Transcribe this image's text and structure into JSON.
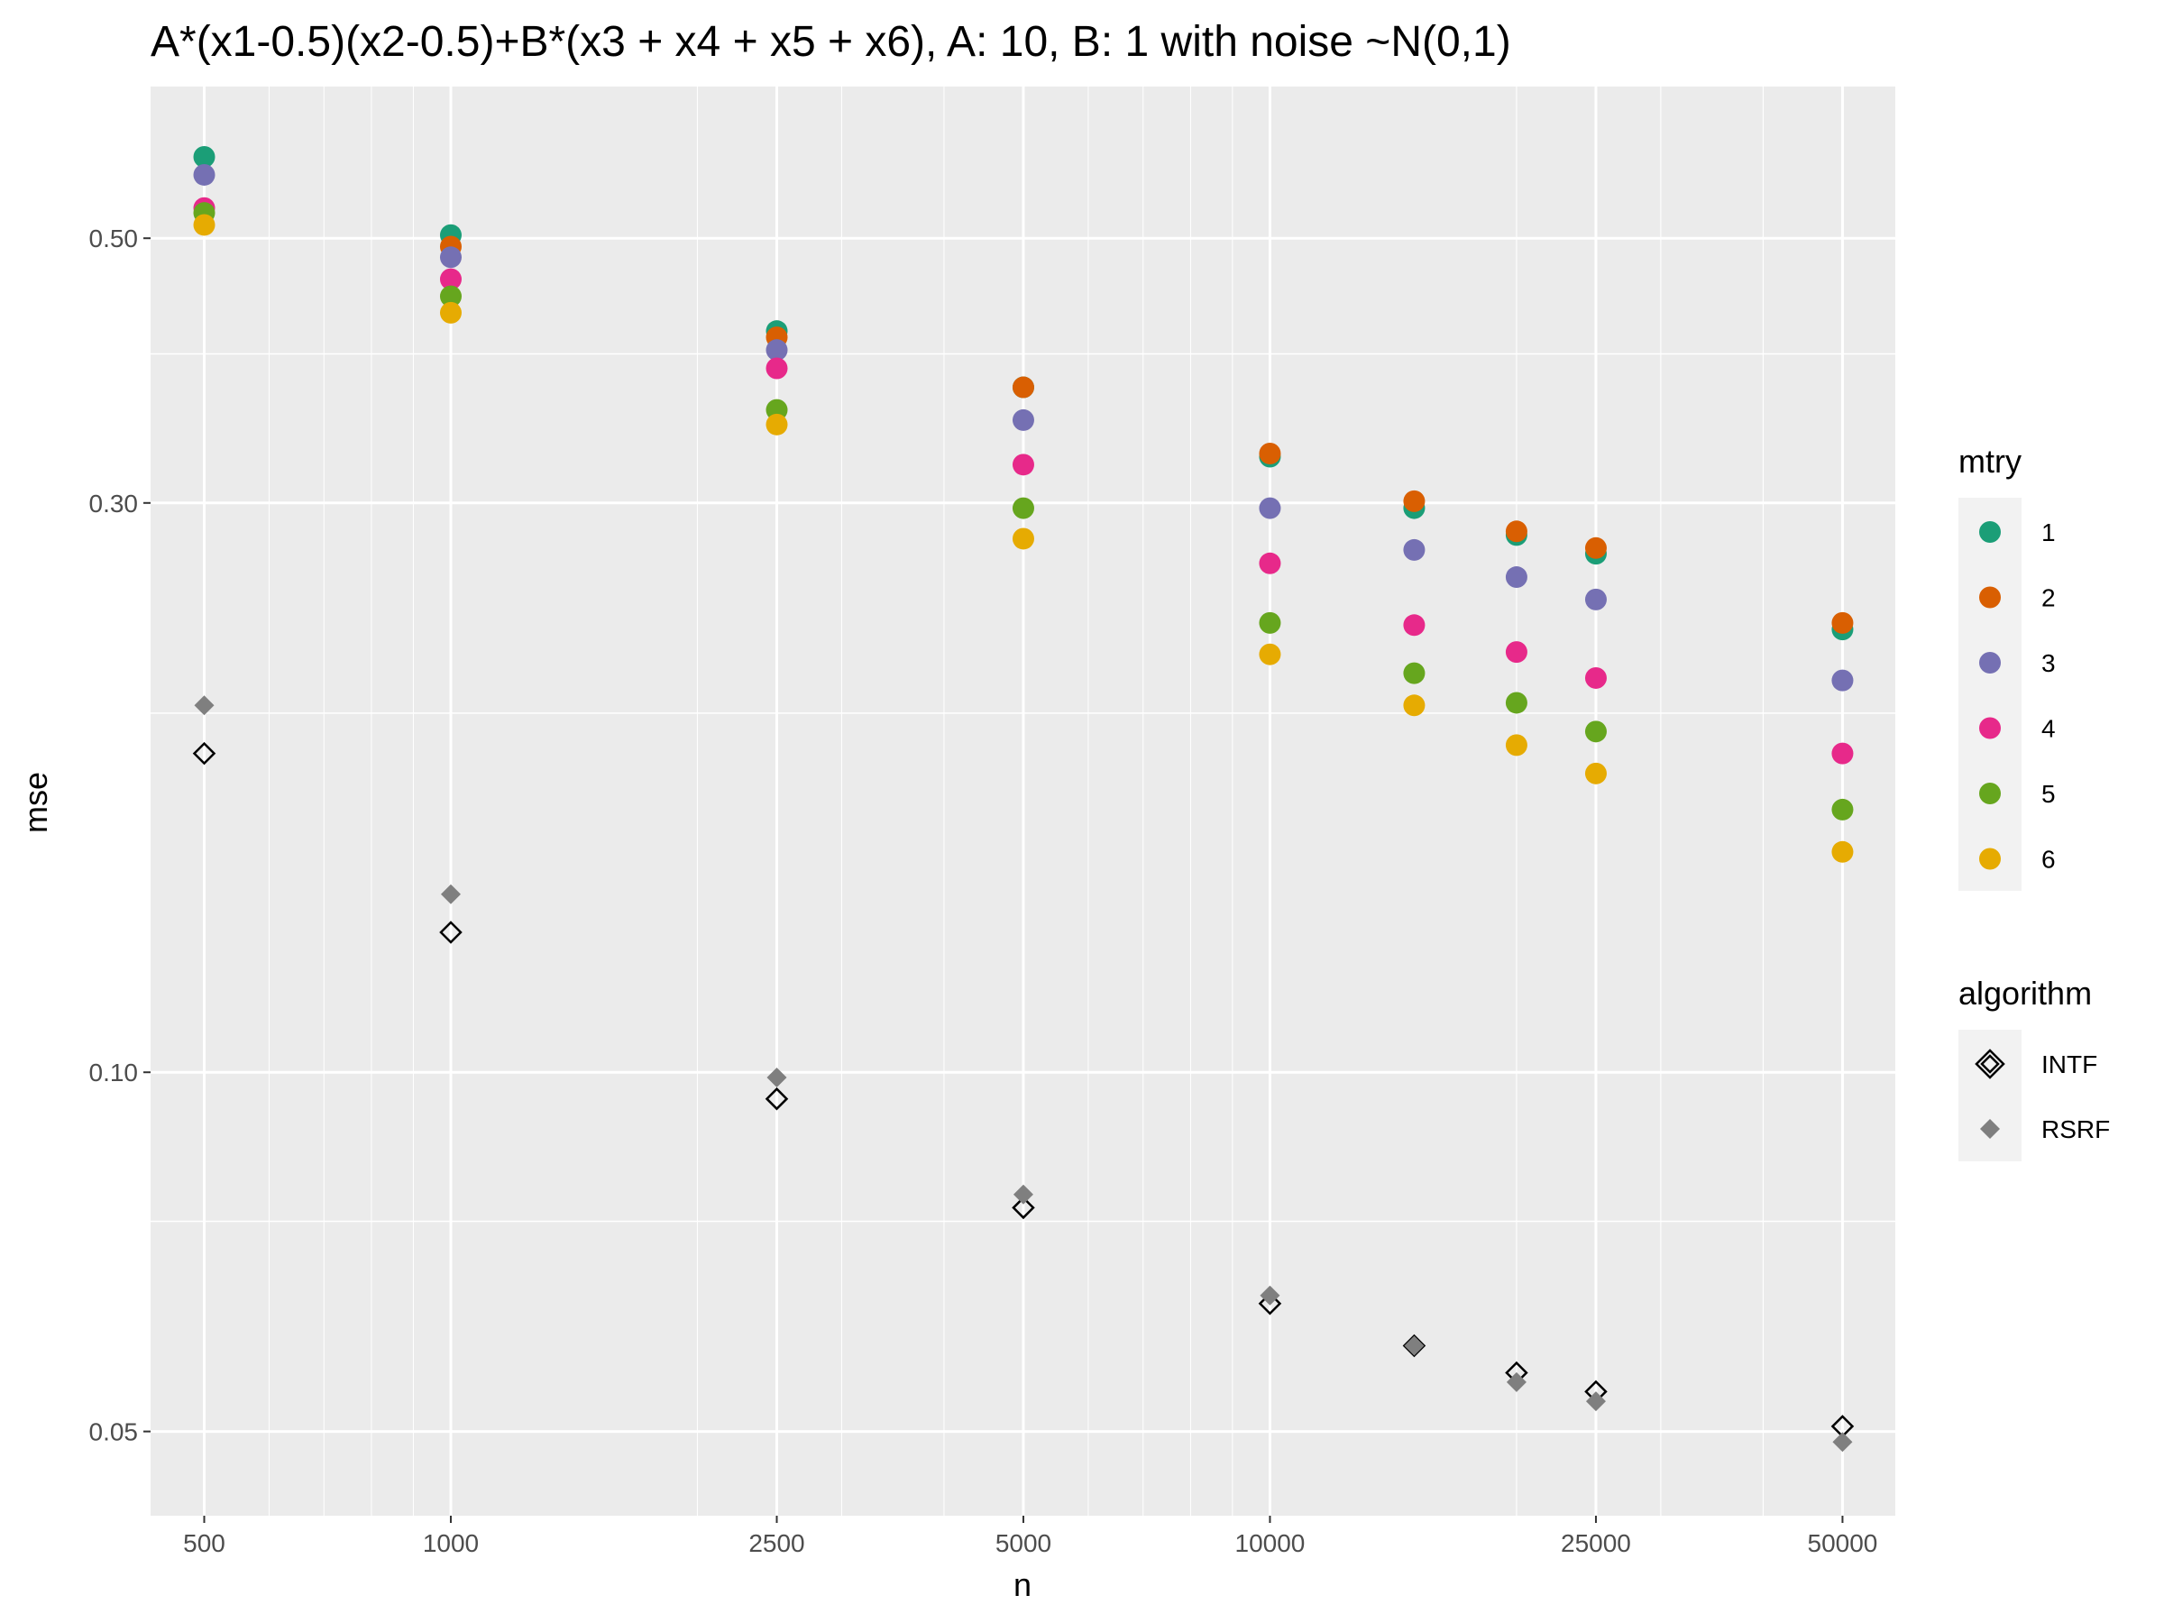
{
  "chart_data": {
    "type": "scatter",
    "title": "A*(x1-0.5)(x2-0.5)+B*(x3 + x4 + x5 + x6), A: 10, B: 1 with noise ~N(0,1)",
    "xlabel": "n",
    "ylabel": "mse",
    "x_scale": "log10",
    "y_scale": "log10",
    "xlim": [
      430,
      58000
    ],
    "ylim": [
      0.0425,
      0.67
    ],
    "x_ticks": [
      500,
      1000,
      2500,
      5000,
      10000,
      25000,
      50000
    ],
    "x_tick_labels": [
      "500",
      "1000",
      "2500",
      "5000",
      "10000",
      "25000",
      "50000"
    ],
    "y_ticks": [
      0.05,
      0.1,
      0.3,
      0.5
    ],
    "y_tick_labels": [
      "0.05",
      "0.10",
      "0.30",
      "0.50"
    ],
    "y_minor_ticks": [
      0.075,
      0.2,
      0.4
    ],
    "grid": true,
    "x": [
      500,
      1000,
      2500,
      5000,
      10000,
      15000,
      20000,
      25000,
      50000
    ],
    "mtry_series": [
      {
        "name": "1",
        "color": "#1B9E77",
        "values": [
          0.585,
          0.503,
          0.418,
          0.375,
          0.328,
          0.297,
          0.282,
          0.272,
          0.235
        ]
      },
      {
        "name": "2",
        "color": "#D95F02",
        "values": [
          null,
          0.492,
          0.413,
          0.375,
          0.33,
          0.301,
          0.284,
          0.275,
          0.238
        ]
      },
      {
        "name": "3",
        "color": "#7570B3",
        "values": [
          0.565,
          0.482,
          0.403,
          0.352,
          0.297,
          0.274,
          0.26,
          0.249,
          0.213
        ]
      },
      {
        "name": "4",
        "color": "#E7298A",
        "values": [
          0.53,
          0.462,
          0.389,
          0.323,
          0.267,
          0.237,
          0.225,
          0.214,
          0.185
        ]
      },
      {
        "name": "5",
        "color": "#66A61E",
        "values": [
          0.525,
          0.447,
          0.359,
          0.297,
          0.238,
          0.216,
          0.204,
          0.193,
          0.166
        ]
      },
      {
        "name": "6",
        "color": "#E6AB02",
        "values": [
          0.513,
          0.433,
          0.349,
          0.28,
          0.224,
          0.203,
          0.188,
          0.178,
          0.153
        ]
      }
    ],
    "algorithm_series": [
      {
        "name": "INTF",
        "shape": "open-diamond",
        "color": "#000000",
        "values": [
          0.185,
          0.131,
          0.095,
          0.077,
          0.064,
          0.059,
          0.056,
          0.054,
          0.0505
        ]
      },
      {
        "name": "RSRF",
        "shape": "filled-diamond",
        "color": "#7F7F7F",
        "values": [
          0.203,
          0.141,
          0.099,
          0.079,
          0.065,
          0.059,
          0.055,
          0.053,
          0.049
        ]
      }
    ],
    "legend": {
      "placement": "right",
      "mtry_title": "mtry",
      "algorithm_title": "algorithm"
    }
  }
}
